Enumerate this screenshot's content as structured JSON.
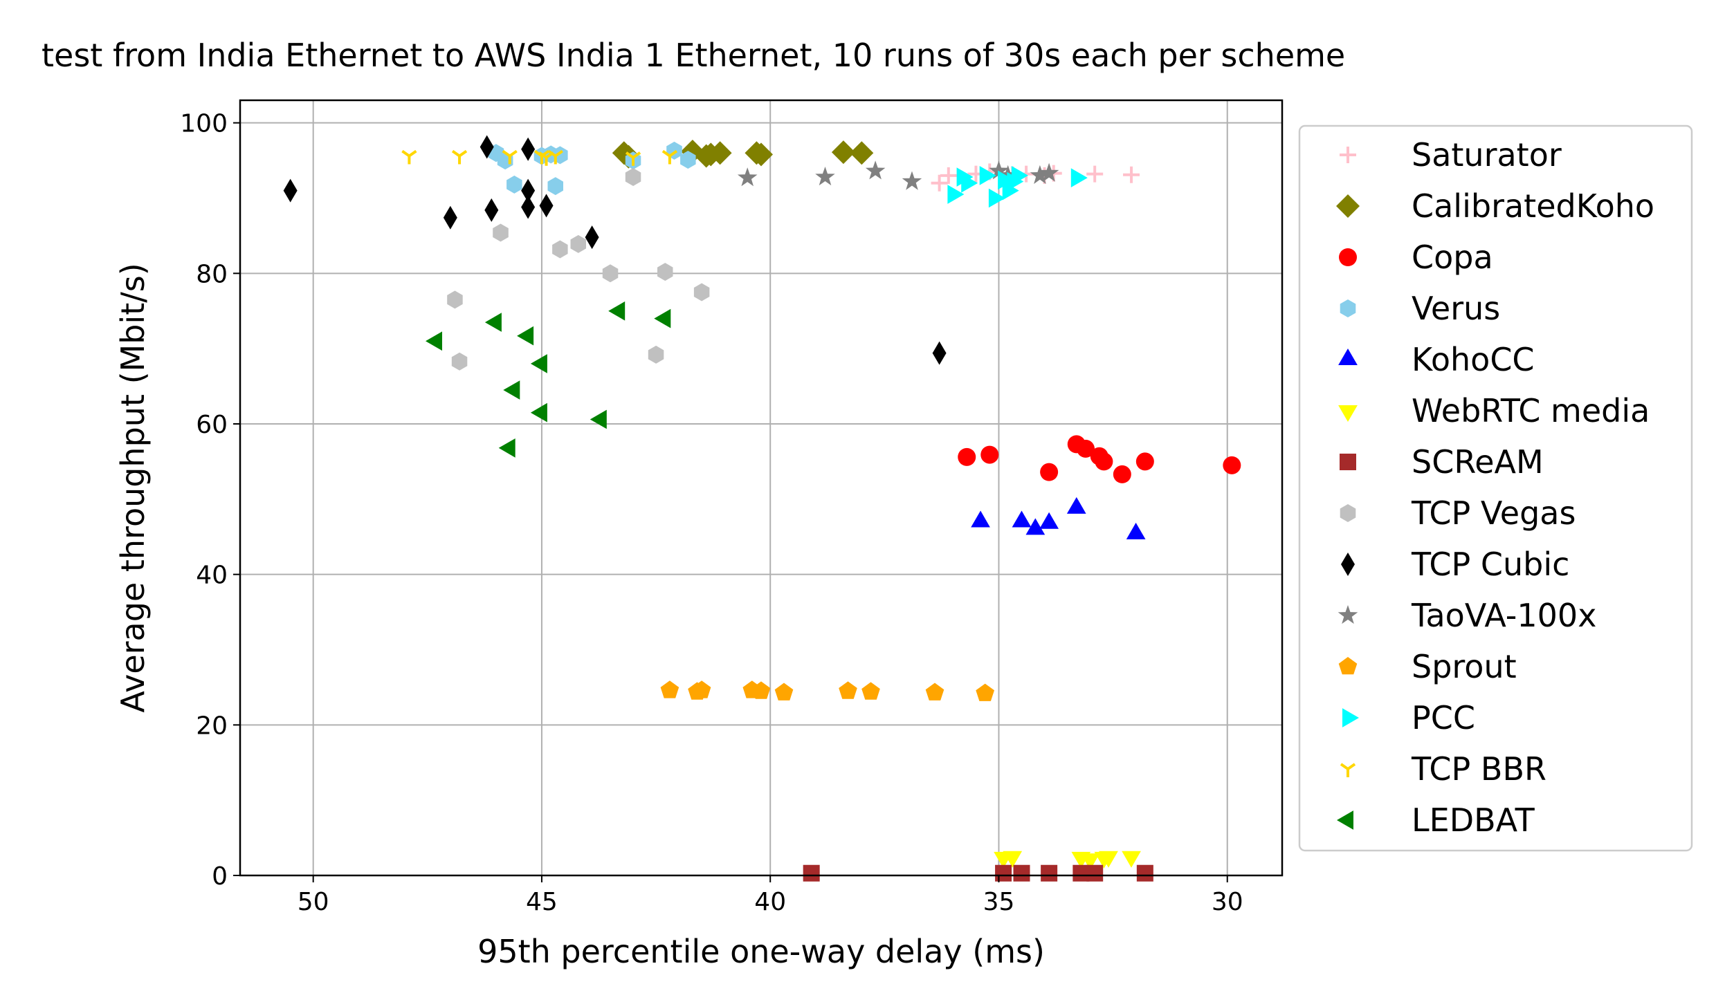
{
  "chart_data": {
    "type": "scatter",
    "title": "test from India Ethernet to AWS India 1 Ethernet, 10 runs of 30s each per scheme",
    "xlabel": "95th percentile one-way delay (ms)",
    "ylabel": "Average throughput (Mbit/s)",
    "xlim": [
      51.6,
      28.8
    ],
    "ylim": [
      0,
      103
    ],
    "x_inverted": true,
    "grid": true,
    "legend_position": "outside-right",
    "xticks": [
      50,
      45,
      40,
      35,
      30
    ],
    "xtick_labels": [
      "50",
      "45",
      "40",
      "35",
      "30"
    ],
    "yticks": [
      0,
      20,
      40,
      60,
      80,
      100
    ],
    "ytick_labels": [
      "0",
      "20",
      "40",
      "60",
      "80",
      "100"
    ],
    "series": [
      {
        "name": "Saturator",
        "marker": "plus",
        "color": "#ffc0cb",
        "x": [
          36.3,
          36.1,
          35.5,
          34.7,
          34.0,
          33.8,
          32.9,
          32.1,
          35.2,
          34.4
        ],
        "y": [
          92.0,
          93.0,
          93.2,
          93.1,
          93.0,
          93.3,
          93.2,
          93.1,
          93.5,
          93.2
        ]
      },
      {
        "name": "CalibratedKoho",
        "marker": "diamond",
        "color": "#808000",
        "x": [
          43.2,
          41.7,
          41.3,
          41.1,
          40.3,
          38.4,
          38.0,
          43.1,
          41.4,
          40.2
        ],
        "y": [
          96.0,
          96.2,
          95.8,
          96.0,
          96.0,
          96.1,
          96.0,
          95.5,
          95.6,
          95.8
        ]
      },
      {
        "name": "Copa",
        "marker": "circle",
        "color": "#ff0000",
        "x": [
          35.7,
          35.2,
          33.9,
          33.3,
          33.1,
          32.8,
          32.7,
          32.3,
          31.8,
          29.9
        ],
        "y": [
          55.6,
          55.9,
          53.6,
          57.3,
          56.7,
          55.7,
          55.0,
          53.3,
          55.0,
          54.5
        ]
      },
      {
        "name": "Verus",
        "marker": "hexagon",
        "color": "#87ceeb",
        "x": [
          46.0,
          45.8,
          45.6,
          45.0,
          44.8,
          44.6,
          43.0,
          42.1,
          41.8,
          44.7
        ],
        "y": [
          96.0,
          95.0,
          91.8,
          95.6,
          95.8,
          95.7,
          95.0,
          96.3,
          95.1,
          91.6
        ]
      },
      {
        "name": "KohoCC",
        "marker": "triangle-up",
        "color": "#0000ff",
        "x": [
          35.4,
          34.5,
          34.2,
          33.9,
          33.3,
          32.0
        ],
        "y": [
          47.0,
          47.0,
          46.0,
          46.8,
          48.8,
          45.4
        ]
      },
      {
        "name": "WebRTC media",
        "marker": "triangle-down",
        "color": "#ffff00",
        "x": [
          34.9,
          34.7,
          33.2,
          33.0,
          32.7,
          32.6,
          32.1
        ],
        "y": [
          2.4,
          2.5,
          2.4,
          2.2,
          2.4,
          2.5,
          2.5
        ]
      },
      {
        "name": "SCReAM",
        "marker": "square",
        "color": "#a52a2a",
        "x": [
          39.1,
          34.9,
          34.5,
          33.9,
          33.2,
          32.9,
          31.8
        ],
        "y": [
          0.3,
          0.3,
          0.3,
          0.3,
          0.3,
          0.3,
          0.3
        ]
      },
      {
        "name": "TCP Vegas",
        "marker": "hexagon",
        "color": "#c0c0c0",
        "x": [
          46.9,
          46.8,
          45.9,
          44.6,
          44.2,
          43.5,
          43.0,
          42.5,
          42.3,
          41.5
        ],
        "y": [
          76.5,
          68.3,
          85.4,
          83.2,
          83.9,
          80.0,
          92.8,
          69.2,
          80.2,
          77.5
        ]
      },
      {
        "name": "TCP Cubic",
        "marker": "thin-diamond",
        "color": "#000000",
        "x": [
          50.5,
          47.0,
          46.2,
          46.1,
          45.3,
          45.3,
          45.3,
          44.9,
          43.9,
          36.3
        ],
        "y": [
          91.0,
          87.4,
          96.8,
          88.4,
          96.5,
          91.0,
          88.8,
          89.0,
          84.8,
          69.4
        ]
      },
      {
        "name": "TaoVA-100x",
        "marker": "star",
        "color": "#808080",
        "x": [
          40.5,
          38.8,
          37.7,
          36.9,
          35.0,
          34.8,
          34.1,
          33.9
        ],
        "y": [
          92.7,
          92.8,
          93.6,
          92.2,
          93.6,
          93.0,
          93.0,
          93.3
        ]
      },
      {
        "name": "Sprout",
        "marker": "pentagon",
        "color": "#ffa500",
        "x": [
          42.2,
          41.6,
          41.5,
          40.4,
          40.2,
          39.7,
          38.3,
          37.8,
          36.4,
          35.3
        ],
        "y": [
          24.6,
          24.4,
          24.6,
          24.6,
          24.5,
          24.3,
          24.5,
          24.4,
          24.3,
          24.2
        ]
      },
      {
        "name": "PCC",
        "marker": "triangle-right",
        "color": "#00ffff",
        "x": [
          36.0,
          35.8,
          35.7,
          35.3,
          35.1,
          34.9,
          34.8,
          34.7,
          34.6,
          33.3
        ],
        "y": [
          90.5,
          92.8,
          92.0,
          93.0,
          90.0,
          92.4,
          91.0,
          92.2,
          93.0,
          92.7
        ]
      },
      {
        "name": "TCP BBR",
        "marker": "tri-down",
        "color": "#ffd700",
        "x": [
          47.9,
          46.8,
          45.7,
          45.0,
          44.9,
          44.7,
          43.0,
          42.2
        ],
        "y": [
          95.6,
          95.6,
          95.6,
          95.6,
          95.4,
          95.6,
          95.4,
          95.6
        ]
      },
      {
        "name": "LEDBAT",
        "marker": "triangle-left",
        "color": "#008000",
        "x": [
          47.3,
          46.0,
          45.7,
          45.3,
          45.6,
          45.0,
          45.0,
          43.7,
          43.3,
          42.3
        ],
        "y": [
          71.0,
          73.5,
          56.8,
          71.7,
          64.5,
          68.0,
          61.5,
          60.6,
          75.0,
          74.0
        ]
      }
    ]
  }
}
